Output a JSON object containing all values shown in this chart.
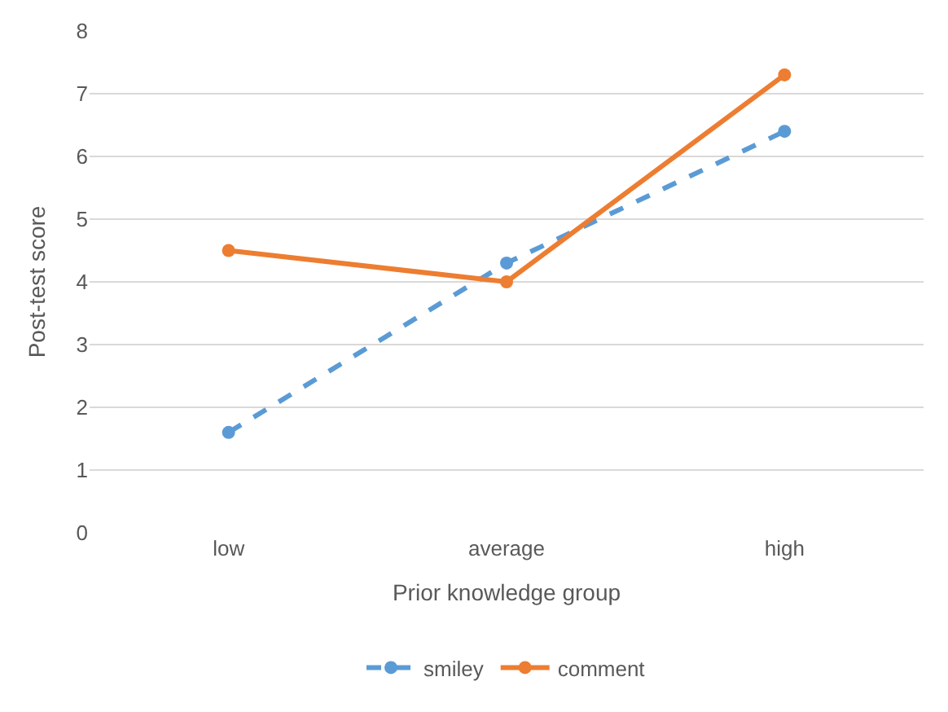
{
  "chart_data": {
    "type": "line",
    "xlabel": "Prior knowledge group",
    "ylabel": "Post-test score",
    "categories": [
      "low",
      "average",
      "high"
    ],
    "series": [
      {
        "name": "smiley",
        "color": "#5b9bd5",
        "values": [
          1.6,
          4.3,
          6.4
        ],
        "line_style": "dashed"
      },
      {
        "name": "comment",
        "color": "#ed7d31",
        "values": [
          4.5,
          4.0,
          7.3
        ],
        "line_style": "solid"
      }
    ],
    "ylim": [
      0,
      8
    ],
    "yticks": [
      0,
      1,
      2,
      3,
      4,
      5,
      6,
      7,
      8
    ],
    "grid": "y",
    "legend": "bottom",
    "marker": "circle"
  }
}
